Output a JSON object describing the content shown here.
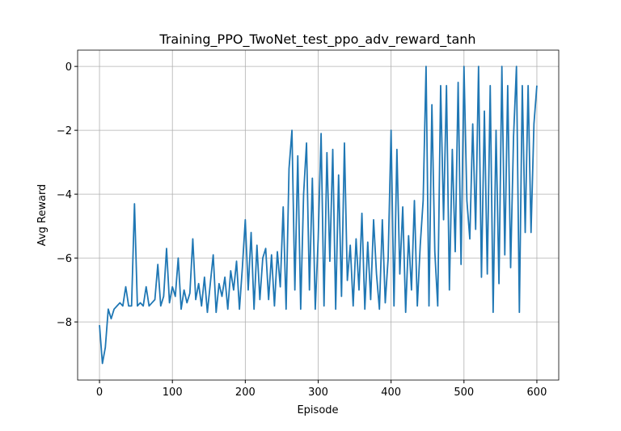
{
  "chart_data": {
    "type": "line",
    "title": "Training_PPO_TwoNet_test_ppo_adv_reward_tanh",
    "x_label": "Episode",
    "y_label": "Avg Reward",
    "grid": true,
    "xlim": [
      -30,
      630
    ],
    "ylim": [
      -9.82,
      0.51
    ],
    "xticks": [
      0,
      100,
      200,
      300,
      400,
      500,
      600
    ],
    "yticks": [
      {
        "value": -8,
        "label": "−8"
      },
      {
        "value": -6,
        "label": "−6"
      },
      {
        "value": -4,
        "label": "−4"
      },
      {
        "value": -2,
        "label": "−2"
      },
      0
    ],
    "x": [
      0,
      4,
      8,
      12,
      16,
      20,
      24,
      28,
      32,
      36,
      40,
      44,
      48,
      52,
      56,
      60,
      64,
      68,
      72,
      76,
      80,
      84,
      88,
      92,
      96,
      100,
      104,
      108,
      112,
      116,
      120,
      124,
      128,
      132,
      136,
      140,
      144,
      148,
      152,
      156,
      160,
      164,
      168,
      172,
      176,
      180,
      184,
      188,
      192,
      196,
      200,
      204,
      208,
      212,
      216,
      220,
      224,
      228,
      232,
      236,
      240,
      244,
      248,
      252,
      256,
      260,
      264,
      268,
      272,
      276,
      280,
      284,
      288,
      292,
      296,
      300,
      304,
      308,
      312,
      316,
      320,
      324,
      328,
      332,
      336,
      340,
      344,
      348,
      352,
      356,
      360,
      364,
      368,
      372,
      376,
      380,
      384,
      388,
      392,
      396,
      400,
      404,
      408,
      412,
      416,
      420,
      424,
      428,
      432,
      436,
      440,
      444,
      448,
      452,
      456,
      460,
      464,
      468,
      472,
      476,
      480,
      484,
      488,
      492,
      496,
      500,
      504,
      508,
      512,
      516,
      520,
      524,
      528,
      532,
      536,
      540,
      544,
      548,
      552,
      556,
      560,
      564,
      568,
      572,
      576,
      580,
      584,
      588,
      592,
      596,
      600
    ],
    "series": [
      {
        "color": "#1f77b4",
        "values": [
          -8.1,
          -9.3,
          -8.8,
          -7.6,
          -7.9,
          -7.6,
          -7.5,
          -7.4,
          -7.5,
          -6.9,
          -7.5,
          -7.5,
          -4.3,
          -7.5,
          -7.4,
          -7.5,
          -6.9,
          -7.5,
          -7.4,
          -7.3,
          -6.2,
          -7.5,
          -7.2,
          -5.7,
          -7.4,
          -6.9,
          -7.2,
          -6.0,
          -7.6,
          -7.0,
          -7.4,
          -7.1,
          -5.4,
          -7.3,
          -6.8,
          -7.5,
          -6.6,
          -7.7,
          -6.8,
          -5.9,
          -7.7,
          -6.8,
          -7.2,
          -6.6,
          -7.6,
          -6.4,
          -7.0,
          -6.1,
          -7.6,
          -6.3,
          -4.8,
          -7.0,
          -5.2,
          -7.6,
          -5.6,
          -7.3,
          -6.0,
          -5.7,
          -7.3,
          -5.9,
          -7.5,
          -5.8,
          -6.9,
          -4.4,
          -7.6,
          -3.2,
          -2.0,
          -7.0,
          -2.8,
          -7.6,
          -4.0,
          -2.4,
          -7.0,
          -3.5,
          -7.6,
          -5.4,
          -2.1,
          -7.5,
          -2.7,
          -6.1,
          -2.6,
          -7.6,
          -3.4,
          -7.2,
          -2.4,
          -6.7,
          -5.6,
          -7.5,
          -5.4,
          -7.0,
          -4.6,
          -7.6,
          -5.5,
          -7.3,
          -4.8,
          -6.5,
          -7.6,
          -4.8,
          -7.4,
          -6.0,
          -2.0,
          -7.5,
          -2.6,
          -6.5,
          -4.4,
          -7.7,
          -5.3,
          -7.0,
          -4.2,
          -7.5,
          -5.6,
          -4.2,
          0,
          -7.5,
          -1.2,
          -5.8,
          -7.5,
          -0.6,
          -4.8,
          -0.6,
          -7.0,
          -2.6,
          -5.8,
          -0.5,
          -6.2,
          0,
          -4.2,
          -5.4,
          -1.8,
          -5.1,
          0,
          -6.6,
          -1.4,
          -6.5,
          -0.6,
          -7.7,
          -2.0,
          -6.8,
          0,
          -5.9,
          -0.6,
          -6.3,
          -2.2,
          0,
          -7.7,
          -0.6,
          -5.2,
          -0.6,
          -5.2,
          -1.8,
          -0.6
        ]
      }
    ]
  }
}
